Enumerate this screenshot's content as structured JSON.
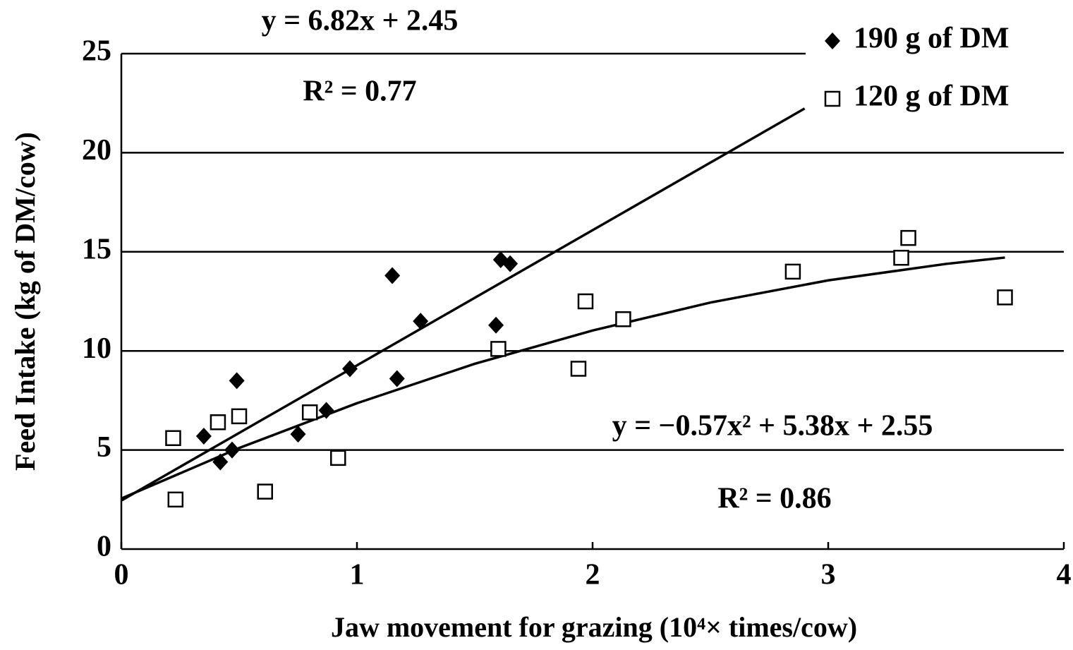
{
  "chart_data": {
    "type": "scatter",
    "x_label": "Jaw movement for grazing (10⁴× times/cow)",
    "y_label": "Feed Intake (kg of DM/cow)",
    "xlim": [
      0,
      4
    ],
    "xticks": [
      0,
      1,
      2,
      3,
      4
    ],
    "ylim": [
      0,
      25
    ],
    "yticks": [
      0,
      5,
      10,
      15,
      20,
      25
    ],
    "grid": true,
    "legend": "top-right",
    "series": [
      {
        "name": "190 g of DM",
        "marker": "diamond",
        "color": "#000000",
        "x": [
          0.35,
          0.42,
          0.47,
          0.49,
          0.75,
          0.87,
          0.97,
          1.15,
          1.17,
          1.27,
          1.59,
          1.61,
          1.65
        ],
        "values": [
          5.7,
          4.4,
          5.0,
          8.5,
          5.8,
          7.0,
          9.1,
          13.8,
          8.6,
          11.5,
          11.3,
          14.6,
          14.4
        ]
      },
      {
        "name": "120 g of DM",
        "marker": "square",
        "color": "#000000",
        "x": [
          0.22,
          0.23,
          0.41,
          0.5,
          0.61,
          0.8,
          0.92,
          1.6,
          1.94,
          1.97,
          2.13,
          2.85,
          3.31,
          3.34,
          3.75
        ],
        "values": [
          5.6,
          2.5,
          6.4,
          6.7,
          2.9,
          6.9,
          4.6,
          10.1,
          9.1,
          12.5,
          11.6,
          14.0,
          14.7,
          15.7,
          12.7
        ]
      }
    ],
    "trendlines": [
      {
        "x": [
          0,
          2.9
        ],
        "values": [
          2.45,
          22.23
        ]
      },
      {
        "x": [
          0,
          0.5,
          1,
          1.5,
          2,
          2.5,
          3,
          3.5,
          3.75
        ],
        "values": [
          2.55,
          5.1,
          7.36,
          9.35,
          11.03,
          12.44,
          13.56,
          14.39,
          14.71
        ]
      }
    ],
    "annotations": [
      "y = 6.82x + 2.45",
      "R² = 0.77",
      "y = −0.57x² + 5.38x + 2.55",
      "R² = 0.86"
    ]
  }
}
